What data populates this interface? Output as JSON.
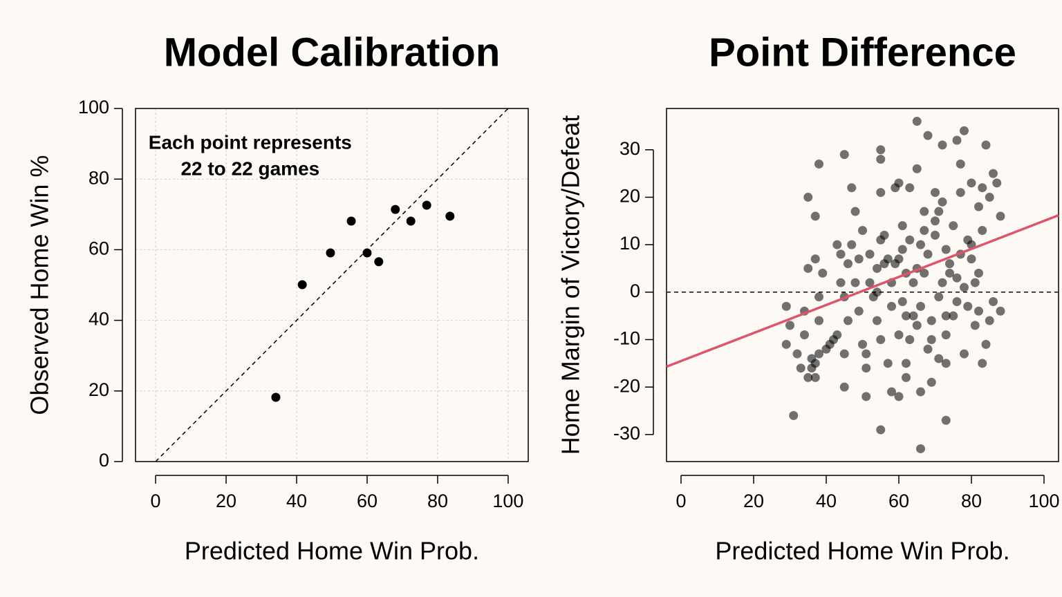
{
  "chart_data": [
    {
      "type": "scatter",
      "title": "Model Calibration",
      "x_label": "Predicted Home Win Prob.",
      "y_label": "Observed Home Win %",
      "annotation": [
        "Each point represents",
        "22 to 22 games"
      ],
      "x": [
        34.1,
        41.6,
        49.6,
        55.5,
        60.0,
        63.3,
        68.0,
        72.4,
        76.9,
        83.5
      ],
      "values": [
        18.2,
        50.1,
        59.1,
        68.1,
        59.1,
        56.6,
        71.4,
        68.1,
        72.6,
        69.5
      ],
      "color": "#000000",
      "xlim": [
        -5.7,
        105.7
      ],
      "ylim": [
        0,
        100
      ],
      "xticks": [
        0,
        20,
        40,
        60,
        80,
        100
      ],
      "yticks": [
        0,
        20,
        40,
        60,
        80,
        100
      ],
      "grid": true,
      "diagonal": true
    },
    {
      "type": "scatter",
      "title": "Point Difference",
      "x_label": "Predicted Home Win Prob.",
      "y_label": "Home Margin of Victory/Defeat",
      "x": [
        31,
        29,
        30,
        29,
        32,
        33,
        34,
        34,
        35,
        35,
        35,
        36,
        36,
        37,
        37,
        37,
        37,
        38,
        38,
        38,
        38,
        39,
        40,
        41,
        42,
        43,
        43,
        44,
        44,
        45,
        45,
        45,
        45,
        46,
        46,
        47,
        47,
        48,
        48,
        49,
        49,
        50,
        50,
        51,
        51,
        51,
        52,
        52,
        53,
        54,
        54,
        54,
        55,
        55,
        55,
        55,
        55,
        55,
        56,
        56,
        57,
        57,
        58,
        58,
        58,
        59,
        59,
        60,
        60,
        60,
        60,
        61,
        61,
        61,
        62,
        62,
        62,
        62,
        63,
        63,
        63,
        64,
        64,
        65,
        65,
        65,
        65,
        66,
        66,
        66,
        66,
        67,
        67,
        67,
        68,
        68,
        68,
        69,
        69,
        69,
        70,
        70,
        70,
        71,
        71,
        71,
        72,
        72,
        72,
        73,
        73,
        73,
        73,
        73,
        74,
        74,
        75,
        75,
        76,
        76,
        76,
        77,
        77,
        77,
        78,
        78,
        78,
        79,
        79,
        80,
        80,
        80,
        81,
        81,
        82,
        82,
        82,
        83,
        83,
        83,
        84,
        84,
        85,
        85,
        86,
        86,
        87,
        88,
        88
      ],
      "values": [
        -26,
        -3,
        -7,
        -11,
        -13,
        -16,
        -9,
        -4,
        -18,
        5,
        20,
        -14,
        -16,
        -15,
        -18,
        7,
        16,
        27,
        -1,
        -6,
        -13,
        4,
        -12,
        -11,
        -10,
        -9,
        10,
        8,
        2,
        -1,
        -13,
        29,
        -20,
        -6,
        6,
        10,
        22,
        17,
        2,
        -4,
        7,
        13,
        -11,
        -13,
        -22,
        -16,
        8,
        2,
        -1,
        5,
        -6,
        0,
        -10,
        11,
        21,
        28,
        30,
        -29,
        6,
        12,
        -15,
        7,
        -3,
        -21,
        2,
        22,
        6,
        -9,
        -22,
        23,
        7,
        9,
        14,
        -2,
        -15,
        -18,
        4,
        -5,
        -10,
        11,
        22,
        -5,
        2,
        5,
        26,
        -7,
        36,
        -33,
        -21,
        10,
        -3,
        13,
        17,
        4,
        33,
        -12,
        8,
        -19,
        -10,
        -6,
        15,
        12,
        21,
        17,
        -14,
        -1,
        31,
        19,
        2,
        -9,
        -15,
        -27,
        9,
        -5,
        4,
        6,
        -5,
        14,
        32,
        3,
        -2,
        27,
        21,
        8,
        34,
        -13,
        1,
        11,
        -3,
        23,
        7,
        10,
        -7,
        2,
        18,
        4,
        -4,
        22,
        -15,
        13,
        -11,
        31,
        20,
        -6,
        25,
        -2,
        23,
        -4,
        16
      ],
      "color": "#000000",
      "xlim": [
        -4,
        104
      ],
      "ylim": [
        -35.7,
        38.7
      ],
      "xticks": [
        0,
        20,
        40,
        60,
        80,
        100
      ],
      "yticks": [
        -30,
        -20,
        -10,
        0,
        10,
        20,
        30
      ],
      "grid": false,
      "hline": 0,
      "fit_line": {
        "x": [
          -4,
          104
        ],
        "y": [
          -15.7,
          16.2
        ],
        "color": "#df536b"
      }
    }
  ]
}
